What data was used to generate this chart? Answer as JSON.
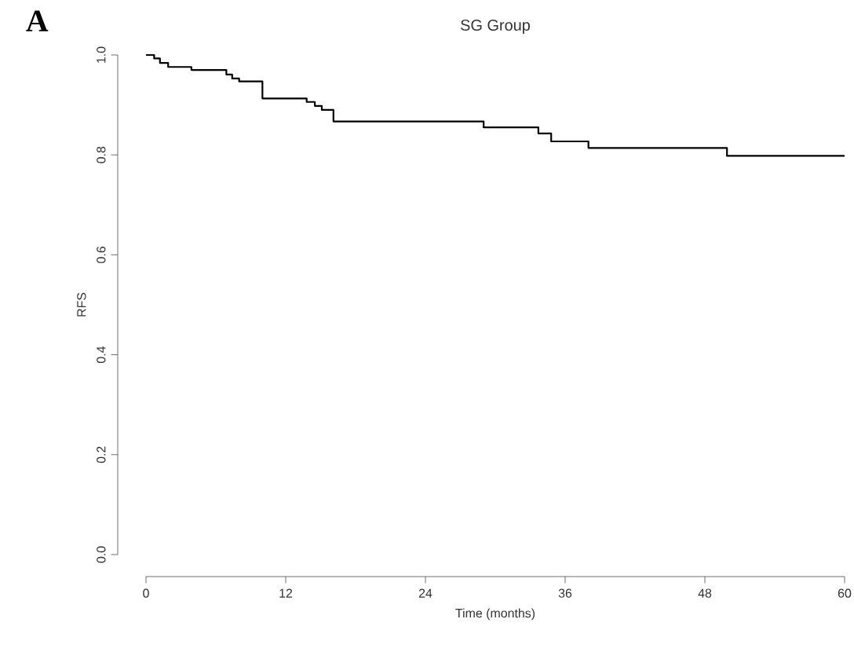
{
  "chart_data": {
    "type": "step",
    "title": "SG Group",
    "xlabel": "Time (months)",
    "ylabel": "RFS",
    "annotations": [
      "A"
    ],
    "xlim": [
      0,
      60
    ],
    "ylim": [
      0,
      1
    ],
    "xticks": [
      0,
      12,
      24,
      36,
      48,
      60
    ],
    "yticks": [
      {
        "value": 0,
        "label": "0.0"
      },
      {
        "value": 0.2,
        "label": "0.2"
      },
      {
        "value": 0.4,
        "label": "0.4"
      },
      {
        "value": 0.6,
        "label": "0.6"
      },
      {
        "value": 0.8,
        "label": "0.8"
      },
      {
        "value": 1,
        "label": "1.0"
      }
    ],
    "series": [
      {
        "color": "#000000",
        "x": [
          0,
          0.7,
          1.2,
          1.9,
          3.9,
          6.9,
          7.4,
          8.0,
          10.0,
          13.8,
          14.5,
          15.1,
          16.1,
          29.0,
          33.7,
          34.8,
          38.0,
          49.9,
          60
        ],
        "values": [
          1.0,
          0.993,
          0.984,
          0.976,
          0.97,
          0.961,
          0.953,
          0.947,
          0.913,
          0.906,
          0.898,
          0.89,
          0.867,
          0.855,
          0.843,
          0.827,
          0.814,
          0.798,
          0.798
        ]
      }
    ]
  }
}
